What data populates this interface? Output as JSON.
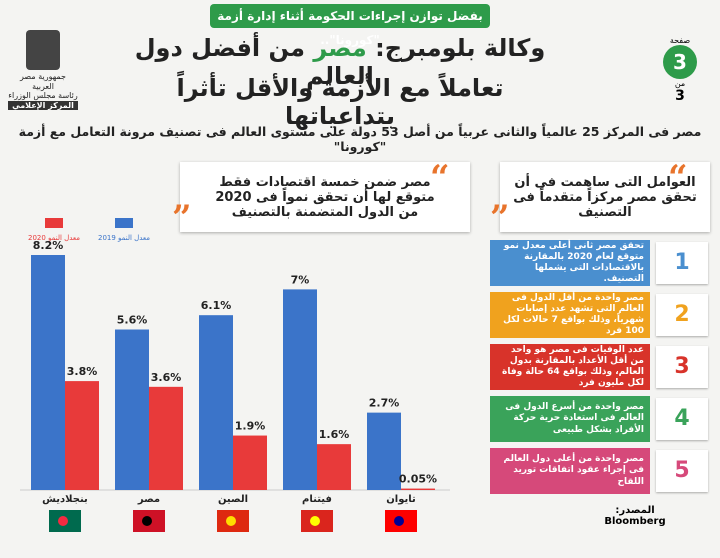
{
  "header": {
    "banner": "بفضل توازن إجراءات الحكومة أثناء إدارة أزمة \"كورونا\"..",
    "title_before": "وكالة بلومبرج:",
    "title_highlight": "مصر",
    "title_after": "من أفضل دول العالم",
    "title_line2": "تعاملاً مع الأزمة والأقل تأثراً بتداعياتها",
    "page_label": "صفحة",
    "page_number": "3",
    "of_label": "من",
    "page_total": "3",
    "logo": [
      "جمهورية مصر العربية",
      "رئاسة مجلس الوزراء",
      "المركز الإعلامي"
    ]
  },
  "subtitle": "مصر فى المركز 25 عالمياً والثانى عربياً من أصل 53 دولة على مستوى العالم فى تصنيف مرونة التعامل مع أزمة \"كورونا\"",
  "factors": {
    "title": "العوامل التى ساهمت فى أن تحقق مصر مركزاً متقدماً فى التصنيف",
    "items": [
      {
        "number": "1",
        "text": "تحقق مصر ثانى أعلى معدل نمو متوقع لعام 2020 بالمقارنة بالاقتصادات التى يشملها التصنيف.",
        "color": "#4a8fcf"
      },
      {
        "number": "2",
        "text": "مصر واحدة من أقل الدول فى العالم التى تشهد عدد إصابات شهرياً، وذلك بواقع 7 حالات لكل 100 فرد",
        "color": "#f0a21e"
      },
      {
        "number": "3",
        "text": "عدد الوفيات فى مصر هو واحد من أقل الأعداد بالمقارنة بدول العالم، وذلك بواقع 64 حالة وفاة لكل مليون فرد",
        "color": "#d8332a"
      },
      {
        "number": "4",
        "text": "مصر واحدة من أسرع الدول فى العالم فى استعادة حرية حركة الأفراد بشكل طبيعى",
        "color": "#3aa35a"
      },
      {
        "number": "5",
        "text": "مصر واحدة من أعلى دول العالم فى إجراء عقود اتفاقات توريد اللقاح",
        "color": "#d6497a"
      }
    ]
  },
  "source": {
    "label": "المصدر:",
    "name": "Bloomberg"
  },
  "chart_data": {
    "type": "bar",
    "title": "مصر ضمن خمسة اقتصادات فقط متوقع لها أن تحقق نمواً فى 2020 من الدول المتضمنة بالتصنيف",
    "categories": [
      "بنجلاديش",
      "مصر",
      "الصين",
      "فيتنام",
      "تايوان"
    ],
    "series": [
      {
        "name": "معدل النمو 2019",
        "color": "#3b74c9",
        "values": [
          8.2,
          5.6,
          6.1,
          7,
          2.7
        ],
        "value_labels": [
          "8.2%",
          "5.6%",
          "6.1%",
          "7%",
          "2.7%"
        ]
      },
      {
        "name": "معدل النمو 2020",
        "color": "#e83a3a",
        "values": [
          3.8,
          3.6,
          1.9,
          1.6,
          0.05
        ],
        "value_labels": [
          "3.8%",
          "3.6%",
          "1.9%",
          "1.6%",
          "0.05%"
        ]
      }
    ]
  }
}
